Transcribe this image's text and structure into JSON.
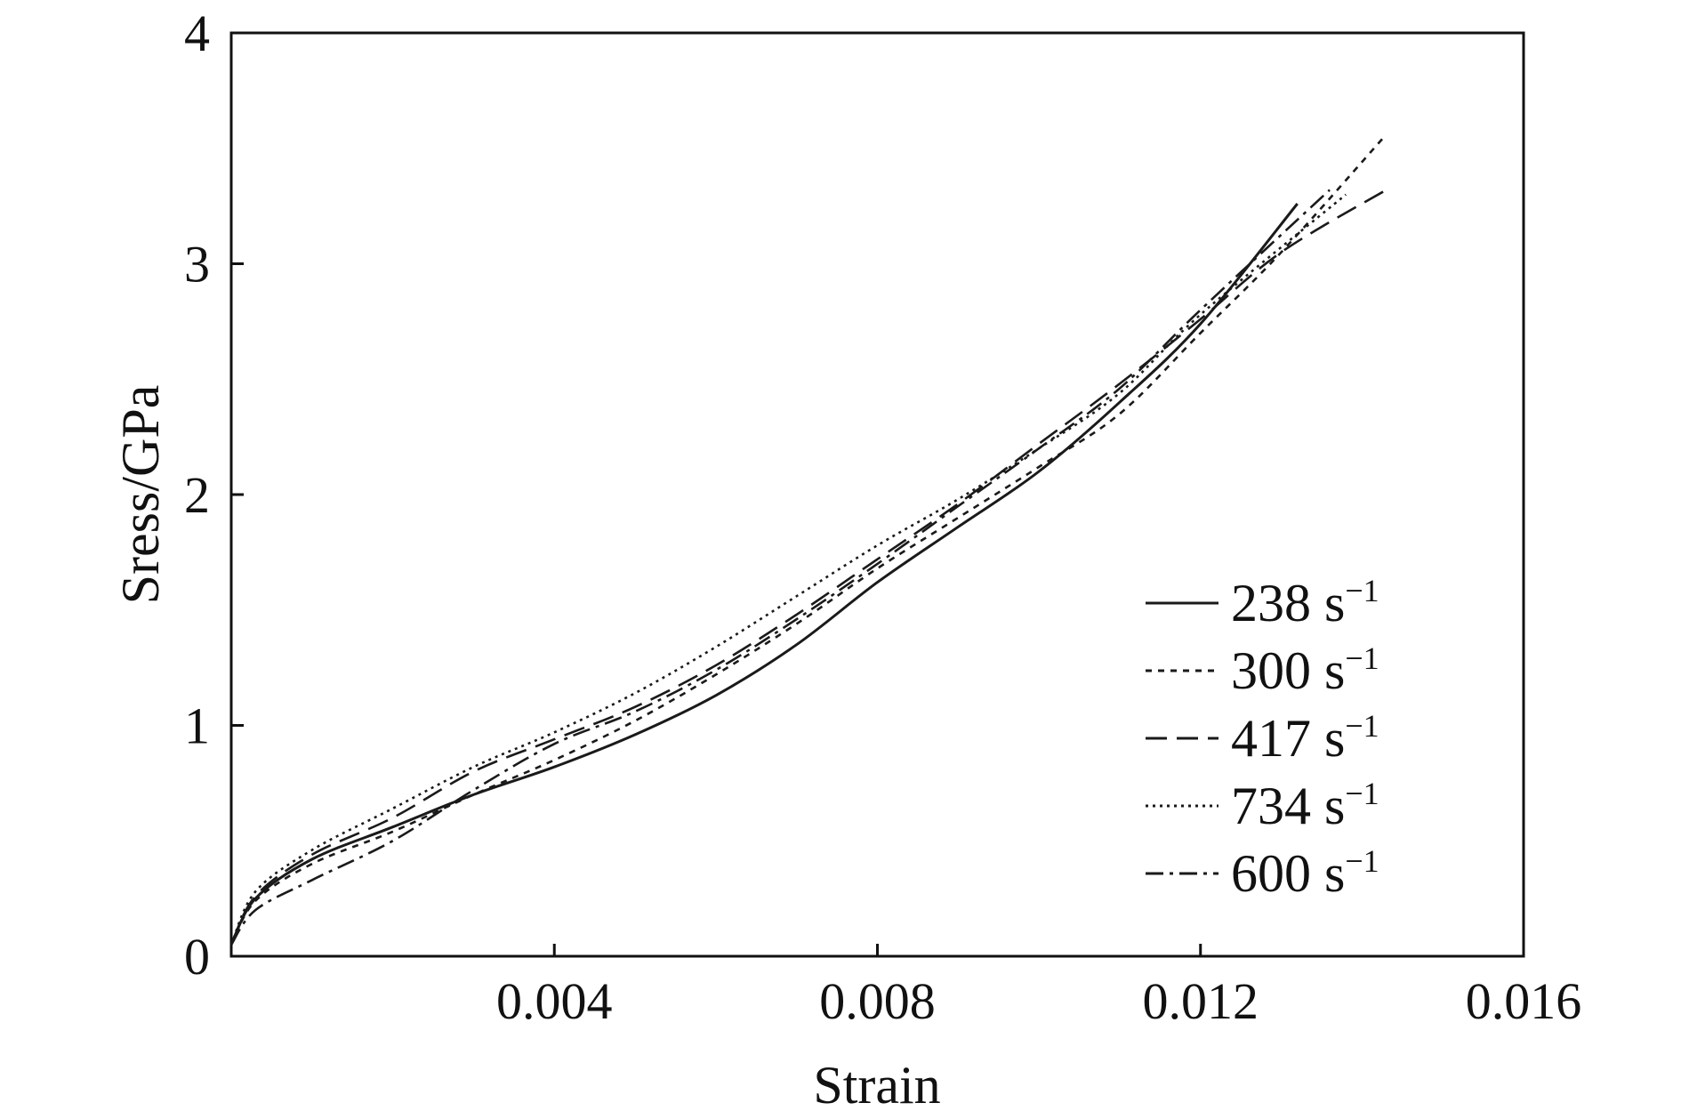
{
  "chart_data": {
    "type": "line",
    "title": "",
    "xlabel": "Strain",
    "ylabel": "Sress/GPa",
    "xlim": [
      0,
      0.016
    ],
    "ylim": [
      0,
      4
    ],
    "x_ticks": [
      0.004,
      0.008,
      0.012,
      0.016
    ],
    "x_tick_labels": [
      "0.004",
      "0.008",
      "0.012",
      "0.016"
    ],
    "y_ticks": [
      0,
      1,
      2,
      3,
      4
    ],
    "y_tick_labels": [
      "0",
      "1",
      "2",
      "3",
      "4"
    ],
    "grid": false,
    "legend_position": "right",
    "legend_superscript": "−1",
    "series": [
      {
        "name": "238 s",
        "dash": "solid",
        "points": [
          [
            0,
            0.05
          ],
          [
            0.0003,
            0.25
          ],
          [
            0.001,
            0.42
          ],
          [
            0.002,
            0.56
          ],
          [
            0.003,
            0.7
          ],
          [
            0.004,
            0.82
          ],
          [
            0.005,
            0.96
          ],
          [
            0.006,
            1.13
          ],
          [
            0.007,
            1.35
          ],
          [
            0.008,
            1.62
          ],
          [
            0.009,
            1.86
          ],
          [
            0.01,
            2.1
          ],
          [
            0.011,
            2.4
          ],
          [
            0.012,
            2.74
          ],
          [
            0.0132,
            3.26
          ]
        ]
      },
      {
        "name": "300 s",
        "dash": "short-dash",
        "points": [
          [
            0,
            0.05
          ],
          [
            0.0003,
            0.24
          ],
          [
            0.001,
            0.4
          ],
          [
            0.002,
            0.54
          ],
          [
            0.003,
            0.7
          ],
          [
            0.004,
            0.85
          ],
          [
            0.005,
            1.02
          ],
          [
            0.006,
            1.22
          ],
          [
            0.007,
            1.44
          ],
          [
            0.008,
            1.68
          ],
          [
            0.009,
            1.9
          ],
          [
            0.01,
            2.12
          ],
          [
            0.011,
            2.35
          ],
          [
            0.012,
            2.7
          ],
          [
            0.013,
            3.05
          ],
          [
            0.0143,
            3.56
          ]
        ]
      },
      {
        "name": "417 s",
        "dash": "long-dash",
        "points": [
          [
            0,
            0.05
          ],
          [
            0.0003,
            0.26
          ],
          [
            0.001,
            0.44
          ],
          [
            0.002,
            0.6
          ],
          [
            0.003,
            0.8
          ],
          [
            0.004,
            0.94
          ],
          [
            0.005,
            1.08
          ],
          [
            0.006,
            1.26
          ],
          [
            0.007,
            1.48
          ],
          [
            0.008,
            1.72
          ],
          [
            0.009,
            1.96
          ],
          [
            0.01,
            2.22
          ],
          [
            0.011,
            2.48
          ],
          [
            0.012,
            2.76
          ],
          [
            0.013,
            3.05
          ],
          [
            0.0143,
            3.32
          ]
        ]
      },
      {
        "name": "734 s",
        "dash": "dotted",
        "points": [
          [
            0,
            0.05
          ],
          [
            0.0003,
            0.28
          ],
          [
            0.001,
            0.46
          ],
          [
            0.002,
            0.64
          ],
          [
            0.003,
            0.82
          ],
          [
            0.004,
            0.97
          ],
          [
            0.005,
            1.14
          ],
          [
            0.006,
            1.34
          ],
          [
            0.007,
            1.56
          ],
          [
            0.008,
            1.78
          ],
          [
            0.009,
            1.98
          ],
          [
            0.01,
            2.2
          ],
          [
            0.011,
            2.44
          ],
          [
            0.012,
            2.78
          ],
          [
            0.0138,
            3.3
          ]
        ]
      },
      {
        "name": "600 s",
        "dash": "dash-dot",
        "points": [
          [
            0,
            0.05
          ],
          [
            0.0003,
            0.2
          ],
          [
            0.001,
            0.33
          ],
          [
            0.002,
            0.5
          ],
          [
            0.003,
            0.72
          ],
          [
            0.004,
            0.92
          ],
          [
            0.005,
            1.06
          ],
          [
            0.006,
            1.24
          ],
          [
            0.007,
            1.46
          ],
          [
            0.008,
            1.7
          ],
          [
            0.009,
            1.95
          ],
          [
            0.01,
            2.2
          ],
          [
            0.011,
            2.46
          ],
          [
            0.012,
            2.8
          ],
          [
            0.0136,
            3.32
          ]
        ]
      }
    ]
  }
}
